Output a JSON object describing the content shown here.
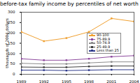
{
  "chart_data": {
    "type": "line",
    "title": "before-tax family income by percentiles of net worth (mean)",
    "y_label": "thousands of 2004 dollars",
    "x": [
      1989,
      1992,
      1995,
      1998,
      2001,
      2004
    ],
    "xlim": [
      1989,
      2004
    ],
    "xticks": [
      1989,
      1992,
      1995,
      1998,
      2001,
      2004
    ],
    "ylim": [
      0,
      300
    ],
    "yticks": [
      0,
      50,
      100,
      150,
      200,
      250,
      300
    ],
    "grid": false,
    "legend": "right",
    "marker": "square",
    "series": [
      {
        "name": "90-100",
        "color": "#f0a030",
        "values": [
          205,
          160,
          175,
          205,
          270,
          255
        ]
      },
      {
        "name": "75-89.9",
        "color": "#8e4a9e",
        "values": [
          75,
          68,
          68,
          75,
          85,
          90
        ]
      },
      {
        "name": "50-74.9",
        "color": "#8c8c8c",
        "values": [
          53,
          50,
          50,
          55,
          60,
          60
        ]
      },
      {
        "name": "25-49.9",
        "color": "#404040",
        "values": [
          35,
          34,
          34,
          38,
          40,
          40
        ]
      },
      {
        "name": "Less than 25",
        "color": "#2e3a8c",
        "values": [
          20,
          20,
          18,
          20,
          22,
          22
        ]
      }
    ]
  }
}
